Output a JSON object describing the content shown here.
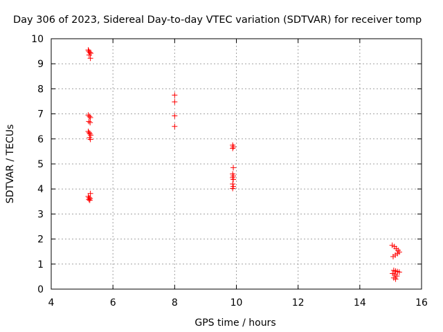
{
  "chart_data": {
    "type": "scatter",
    "title": "Day 306 of 2023, Sidereal Day-to-day VTEC variation (SDTVAR) for receiver tomp",
    "xlabel": "GPS time / hours",
    "ylabel": "SDTVAR / TECUs",
    "xlim": [
      4,
      16
    ],
    "ylim": [
      0,
      10
    ],
    "xticks": [
      "4",
      "6",
      "8",
      "10",
      "12",
      "14",
      "16"
    ],
    "yticks": [
      "0",
      "1",
      "2",
      "3",
      "4",
      "5",
      "6",
      "7",
      "8",
      "9",
      "10"
    ],
    "grid": true,
    "marker": "+",
    "series": [
      {
        "name": "SDTVAR",
        "color": "#ff0000",
        "points": [
          [
            5.2,
            9.55
          ],
          [
            5.22,
            9.5
          ],
          [
            5.25,
            9.45
          ],
          [
            5.28,
            9.42
          ],
          [
            5.23,
            9.35
          ],
          [
            5.27,
            9.22
          ],
          [
            5.2,
            6.95
          ],
          [
            5.24,
            6.9
          ],
          [
            5.27,
            6.85
          ],
          [
            5.22,
            6.7
          ],
          [
            5.26,
            6.65
          ],
          [
            5.2,
            6.3
          ],
          [
            5.23,
            6.25
          ],
          [
            5.25,
            6.2
          ],
          [
            5.28,
            6.15
          ],
          [
            5.24,
            6.05
          ],
          [
            5.27,
            5.98
          ],
          [
            5.27,
            3.82
          ],
          [
            5.2,
            3.7
          ],
          [
            5.23,
            3.65
          ],
          [
            5.26,
            3.62
          ],
          [
            5.22,
            3.58
          ],
          [
            5.25,
            3.55
          ],
          [
            8.0,
            7.75
          ],
          [
            8.0,
            7.48
          ],
          [
            8.0,
            6.92
          ],
          [
            8.0,
            6.5
          ],
          [
            9.88,
            5.75
          ],
          [
            9.9,
            5.68
          ],
          [
            9.88,
            5.62
          ],
          [
            9.9,
            4.85
          ],
          [
            9.88,
            4.6
          ],
          [
            9.9,
            4.52
          ],
          [
            9.88,
            4.45
          ],
          [
            9.9,
            4.38
          ],
          [
            9.88,
            4.2
          ],
          [
            9.9,
            4.1
          ],
          [
            9.88,
            4.02
          ],
          [
            15.05,
            1.75
          ],
          [
            15.12,
            1.7
          ],
          [
            15.18,
            1.62
          ],
          [
            15.24,
            1.55
          ],
          [
            15.28,
            1.48
          ],
          [
            15.22,
            1.42
          ],
          [
            15.15,
            1.36
          ],
          [
            15.08,
            1.3
          ],
          [
            15.1,
            0.75
          ],
          [
            15.16,
            0.72
          ],
          [
            15.22,
            0.7
          ],
          [
            15.28,
            0.68
          ],
          [
            15.06,
            0.62
          ],
          [
            15.14,
            0.58
          ],
          [
            15.2,
            0.52
          ],
          [
            15.1,
            0.45
          ],
          [
            15.16,
            0.4
          ]
        ]
      }
    ]
  }
}
